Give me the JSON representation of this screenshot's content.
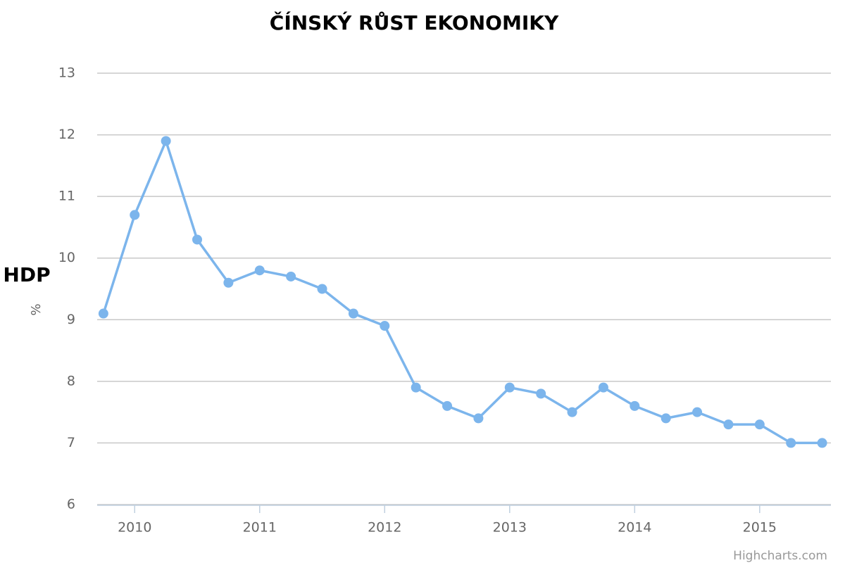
{
  "chart_data": {
    "type": "line",
    "title": "ČÍNSKÝ RŮST EKONOMIKY",
    "y_label": "HDP",
    "y_unit": "%",
    "credits": "Highcharts.com",
    "x": [
      2009.75,
      2010,
      2010.25,
      2010.5,
      2010.75,
      2011,
      2011.25,
      2011.5,
      2011.75,
      2012,
      2012.25,
      2012.5,
      2012.75,
      2013,
      2013.25,
      2013.5,
      2013.75,
      2014,
      2014.25,
      2014.5,
      2014.75,
      2015,
      2015.25,
      2015.5
    ],
    "series": [
      {
        "color": "#7cb5ec",
        "values": [
          9.1,
          10.7,
          11.9,
          10.3,
          9.6,
          9.8,
          9.7,
          9.5,
          9.1,
          8.9,
          7.9,
          7.6,
          7.4,
          7.9,
          7.8,
          7.5,
          7.9,
          7.6,
          7.4,
          7.5,
          7.3,
          7.3,
          7.0,
          7.0
        ]
      }
    ],
    "xlim": [
      2009.7,
      2015.57
    ],
    "xticks": [
      2010,
      2011,
      2012,
      2013,
      2014,
      2015
    ],
    "ylim": [
      6,
      13
    ],
    "yticks": [
      6,
      7,
      8,
      9,
      10,
      11,
      12,
      13
    ],
    "grid": true
  }
}
